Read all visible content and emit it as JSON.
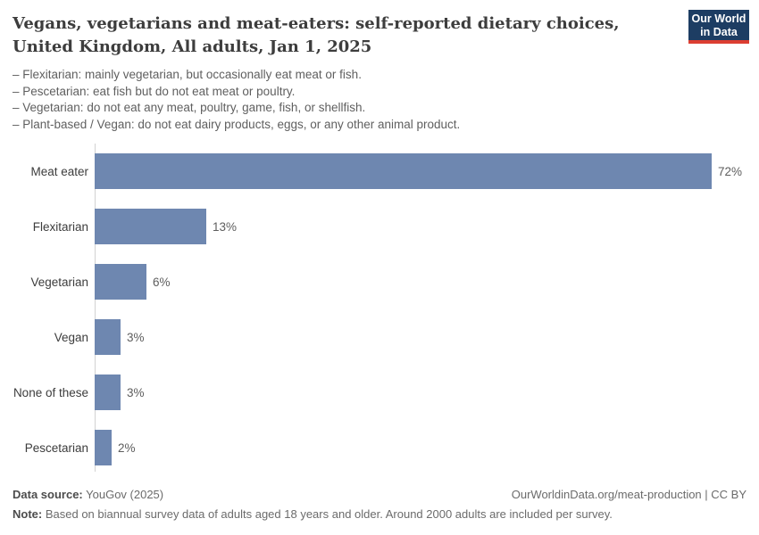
{
  "title": {
    "lines": [
      "Vegans, vegetarians and meat-eaters: self-reported dietary choices,",
      "United Kingdom, All adults, Jan 1, 2025"
    ]
  },
  "subtitle": {
    "lines": [
      "– Flexitarian: mainly vegetarian, but occasionally eat meat or fish.",
      "– Pescetarian: eat fish but do not eat meat or poultry.",
      "– Vegetarian: do not eat any meat, poultry, game, fish, or shellfish.",
      "– Plant-based / Vegan: do not eat dairy products, eggs, or any other animal product."
    ]
  },
  "logo": {
    "line1": "Our World",
    "line2": "in Data",
    "bg_color": "#1d3d63",
    "accent_color": "#dc3e32"
  },
  "chart_data": {
    "type": "bar",
    "orientation": "horizontal",
    "title": "Vegans, vegetarians and meat-eaters: self-reported dietary choices, United Kingdom, All adults, Jan 1, 2025",
    "categories": [
      "Meat eater",
      "Flexitarian",
      "Vegetarian",
      "Vegan",
      "None of these",
      "Pescetarian"
    ],
    "values": [
      72,
      13,
      6,
      3,
      3,
      2
    ],
    "value_labels": [
      "72%",
      "13%",
      "6%",
      "3%",
      "3%",
      "2%"
    ],
    "unit": "%",
    "xlim": [
      0,
      72
    ],
    "grid": false,
    "legend": false,
    "bar_color": "#6e87b0",
    "axis_color": "#d2d2d2"
  },
  "footer": {
    "datasource_label": "Data source:",
    "datasource_value": "YouGov (2025)",
    "link": "OurWorldinData.org/meat-production | CC BY",
    "note_label": "Note:",
    "note_text": "Based on biannual survey data of adults aged 18 years and older. Around 2000 adults are included per survey."
  }
}
